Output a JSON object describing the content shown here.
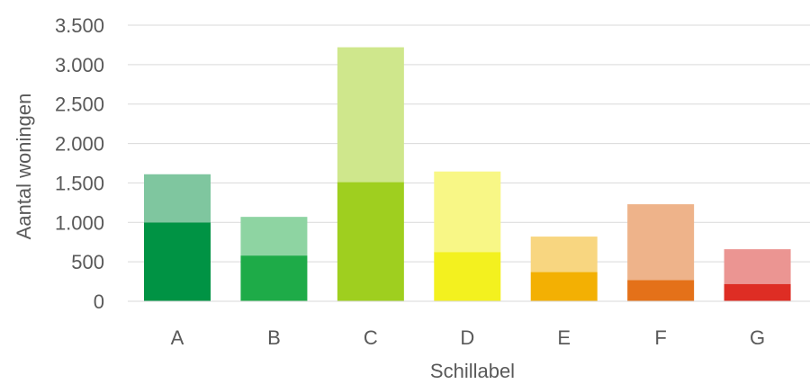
{
  "chart_data": {
    "type": "bar",
    "stacked": true,
    "xlabel": "Schillabel",
    "ylabel": "Aantal woningen",
    "categories": [
      "A",
      "B",
      "C",
      "D",
      "E",
      "F",
      "G"
    ],
    "ylim": [
      0,
      3500
    ],
    "yticks": [
      0,
      500,
      1000,
      1500,
      2000,
      2500,
      3000,
      3500
    ],
    "ytick_labels": [
      "0",
      "500",
      "1.000",
      "1.500",
      "2.000",
      "2.500",
      "3.000",
      "3.500"
    ],
    "grid": "horizontal",
    "legend": "none",
    "series": [
      {
        "values": [
          1000,
          580,
          1510,
          625,
          370,
          270,
          220
        ],
        "colors": [
          "#009344",
          "#1eab48",
          "#9fcf1f",
          "#f3f11f",
          "#f3b003",
          "#e47119",
          "#de2d24"
        ]
      },
      {
        "values": [
          610,
          490,
          1710,
          1020,
          450,
          960,
          440
        ],
        "colors": [
          "#7fc69f",
          "#8ed4a2",
          "#cfe78c",
          "#f8f786",
          "#f8d680",
          "#eeb38a",
          "#eb9592"
        ]
      }
    ]
  }
}
